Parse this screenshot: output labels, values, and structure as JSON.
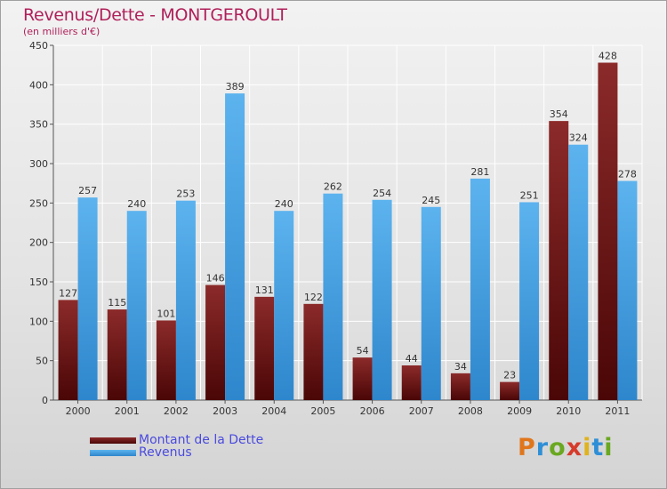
{
  "header": {
    "title": "Revenus/Dette - MONTGEROULT",
    "subtitle": "(en milliers d'€)"
  },
  "legend": {
    "items": [
      {
        "label": "Montant de la Dette",
        "color": "#6e0f0f"
      },
      {
        "label": "Revenus",
        "color": "#4aa6e6"
      }
    ]
  },
  "brand": {
    "letters": [
      "P",
      "r",
      "o",
      "x",
      "i",
      "t",
      "i"
    ],
    "colors": [
      "#e0761c",
      "#2f8fd6",
      "#6aa820",
      "#d63a2a",
      "#e0b21c",
      "#2f8fd6",
      "#6aa820"
    ]
  },
  "chart_data": {
    "type": "bar",
    "title": "Revenus/Dette - MONTGEROULT",
    "subtitle": "(en milliers d'€)",
    "categories": [
      "2000",
      "2001",
      "2002",
      "2003",
      "2004",
      "2005",
      "2006",
      "2007",
      "2008",
      "2009",
      "2010",
      "2011"
    ],
    "series": [
      {
        "name": "Montant de la Dette",
        "color": "#6e0f0f",
        "values": [
          127,
          115,
          101,
          146,
          131,
          122,
          54,
          44,
          34,
          23,
          354,
          428
        ]
      },
      {
        "name": "Revenus",
        "color": "#4aa6e6",
        "values": [
          257,
          240,
          253,
          389,
          240,
          262,
          254,
          245,
          281,
          251,
          324,
          278
        ]
      }
    ],
    "ylim": [
      0,
      450
    ],
    "yticks": [
      0,
      50,
      100,
      150,
      200,
      250,
      300,
      350,
      400,
      450
    ],
    "grid": true,
    "legend_position": "bottom-left"
  }
}
